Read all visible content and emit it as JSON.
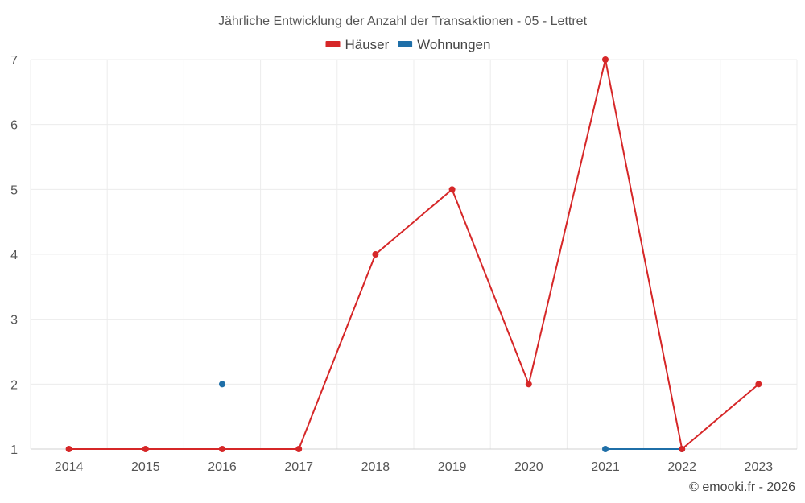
{
  "chart_data": {
    "type": "line",
    "title": "Jährliche Entwicklung der Anzahl der Transaktionen - 05 - Lettret",
    "categories": [
      "2014",
      "2015",
      "2016",
      "2017",
      "2018",
      "2019",
      "2020",
      "2021",
      "2022",
      "2023"
    ],
    "yticks": [
      1,
      2,
      3,
      4,
      5,
      6,
      7
    ],
    "ylim": [
      1,
      7
    ],
    "xlabel": "",
    "ylabel": "",
    "grid": true,
    "legend_position": "top-center",
    "series": [
      {
        "name": "Häuser",
        "color": "#d62728",
        "values": [
          1,
          1,
          1,
          1,
          4,
          5,
          2,
          7,
          1,
          2
        ]
      },
      {
        "name": "Wohnungen",
        "color": "#1f6fa8",
        "values": [
          null,
          null,
          2,
          null,
          null,
          null,
          null,
          1,
          1,
          null
        ]
      }
    ]
  },
  "footer": "© emooki.fr - 2026"
}
